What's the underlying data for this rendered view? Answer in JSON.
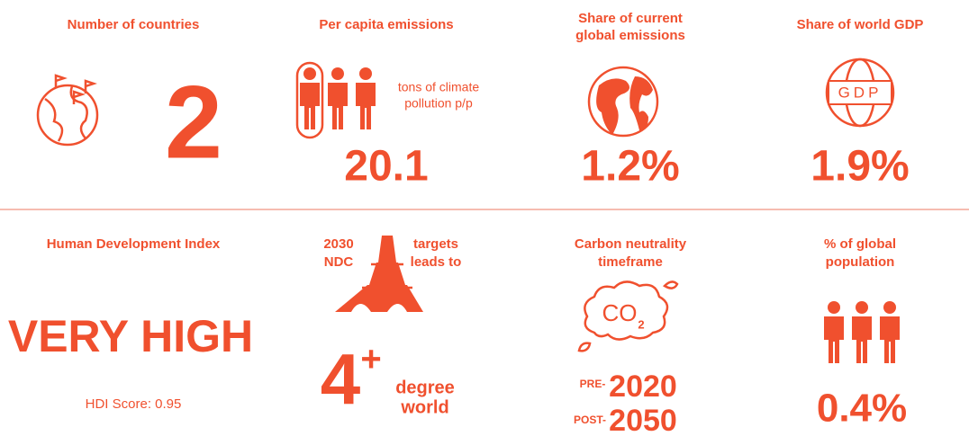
{
  "cells": [
    {
      "title": "Number of countries",
      "value": "2"
    },
    {
      "title": "Per capita emissions",
      "caption_lines": [
        "tons of climate",
        "pollution p/p"
      ],
      "value": "20.1"
    },
    {
      "title_lines": [
        "Share of current",
        "global emissions"
      ],
      "value": "1.2%"
    },
    {
      "title": "Share of world GDP",
      "icon_label": "GDP",
      "value": "1.9%"
    },
    {
      "title": "Human Development Index",
      "value": "VERY HIGH",
      "note": "HDI Score: 0.95"
    },
    {
      "year": "2030",
      "targets": "targets",
      "ndc": "NDC",
      "leads_to": "leads to",
      "value": "4",
      "superscript": "+",
      "unit_lines": [
        "degree",
        "world"
      ]
    },
    {
      "title_lines": [
        "Carbon neutrality",
        "timeframe"
      ],
      "icon_label": "CO",
      "icon_subscript": "2",
      "pre_label": "PRE-",
      "pre_year": "2020",
      "post_label": "POST-",
      "post_year": "2050"
    },
    {
      "title_lines": [
        "% of global",
        "population"
      ],
      "value": "0.4%"
    }
  ]
}
